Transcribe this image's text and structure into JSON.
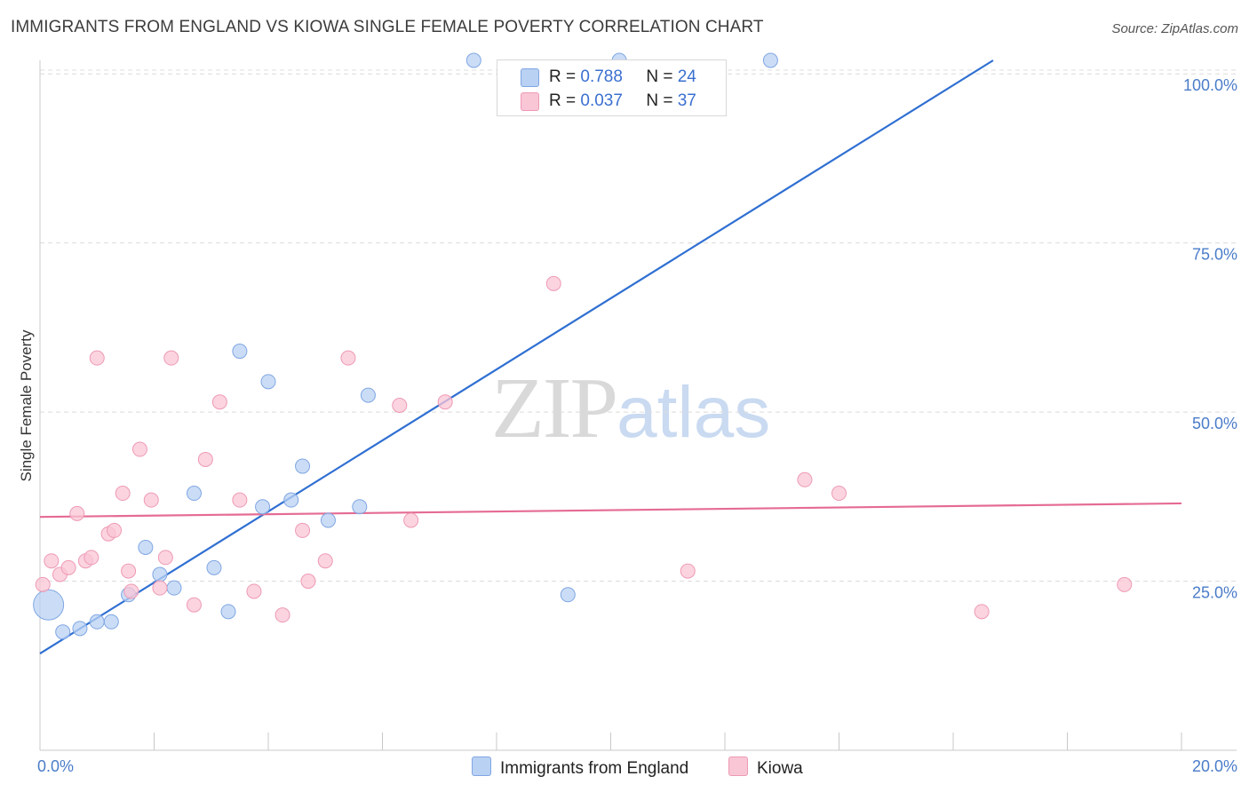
{
  "header": {
    "title": "IMMIGRANTS FROM ENGLAND VS KIOWA SINGLE FEMALE POVERTY CORRELATION CHART",
    "source": "Source: ZipAtlas.com"
  },
  "watermark": {
    "zip": "ZIP",
    "atlas": "atlas"
  },
  "legend": {
    "rows": [
      {
        "r_label": "R =",
        "r_value": "0.788",
        "n_label": "N =",
        "n_value": "24",
        "color": "#b9d1f3",
        "border": "#7fa6e3"
      },
      {
        "r_label": "R =",
        "r_value": "0.037",
        "n_label": "N =",
        "n_value": "37",
        "color": "#f9c6d6",
        "border": "#ee9ab4"
      }
    ]
  },
  "bottom_legend": [
    {
      "label": "Immigrants from England",
      "color": "#b9d1f3",
      "border": "#7fa6e3"
    },
    {
      "label": "Kiowa",
      "color": "#f9c6d6",
      "border": "#ee9ab4"
    }
  ],
  "chart_data": {
    "type": "scatter",
    "title": "IMMIGRANTS FROM ENGLAND VS KIOWA SINGLE FEMALE POVERTY CORRELATION CHART",
    "xlabel": "",
    "ylabel": "Single Female Poverty",
    "xlim": [
      0,
      20
    ],
    "ylim": [
      0,
      102
    ],
    "x_tick_labels": [
      {
        "value": 0,
        "label": "0.0%"
      },
      {
        "value": 20,
        "label": "20.0%"
      }
    ],
    "y_tick_labels": [
      {
        "value": 25,
        "label": "25.0%"
      },
      {
        "value": 50,
        "label": "50.0%"
      },
      {
        "value": 75,
        "label": "75.0%"
      },
      {
        "value": 100,
        "label": "100.0%"
      }
    ],
    "series": [
      {
        "name": "Immigrants from England",
        "color": "#b9d1f3",
        "stroke": "#7fa6e3",
        "line_color": "#2f6fd2",
        "trend": {
          "x": [
            0,
            16.7
          ],
          "y": [
            14.3,
            102
          ]
        },
        "points": [
          {
            "x": 0.15,
            "y": 21.5,
            "size": "large"
          },
          {
            "x": 0.4,
            "y": 17.5
          },
          {
            "x": 0.7,
            "y": 18.0
          },
          {
            "x": 1.0,
            "y": 19.0
          },
          {
            "x": 1.25,
            "y": 19.0
          },
          {
            "x": 1.55,
            "y": 23.0
          },
          {
            "x": 1.85,
            "y": 30.0
          },
          {
            "x": 2.1,
            "y": 26.0
          },
          {
            "x": 2.35,
            "y": 24.0
          },
          {
            "x": 2.7,
            "y": 38.0
          },
          {
            "x": 3.05,
            "y": 27.0
          },
          {
            "x": 3.3,
            "y": 20.5
          },
          {
            "x": 3.5,
            "y": 59.0
          },
          {
            "x": 3.9,
            "y": 36.0
          },
          {
            "x": 4.0,
            "y": 54.5
          },
          {
            "x": 4.4,
            "y": 37.0
          },
          {
            "x": 4.6,
            "y": 42.0
          },
          {
            "x": 5.05,
            "y": 34.0
          },
          {
            "x": 5.6,
            "y": 36.0
          },
          {
            "x": 5.75,
            "y": 52.5
          },
          {
            "x": 7.6,
            "y": 102.0
          },
          {
            "x": 9.25,
            "y": 23.0
          },
          {
            "x": 10.15,
            "y": 102.0
          },
          {
            "x": 12.8,
            "y": 102.0
          }
        ]
      },
      {
        "name": "Kiowa",
        "color": "#f9c6d6",
        "stroke": "#ee9ab4",
        "line_color": "#e56b93",
        "trend": {
          "x": [
            0,
            20
          ],
          "y": [
            34.5,
            36.5
          ]
        },
        "points": [
          {
            "x": 0.05,
            "y": 24.5
          },
          {
            "x": 0.2,
            "y": 28.0
          },
          {
            "x": 0.35,
            "y": 26.0
          },
          {
            "x": 0.5,
            "y": 27.0
          },
          {
            "x": 0.65,
            "y": 35.0
          },
          {
            "x": 0.8,
            "y": 28.0
          },
          {
            "x": 0.9,
            "y": 28.5
          },
          {
            "x": 1.0,
            "y": 58.0
          },
          {
            "x": 1.2,
            "y": 32.0
          },
          {
            "x": 1.3,
            "y": 32.5
          },
          {
            "x": 1.45,
            "y": 38.0
          },
          {
            "x": 1.55,
            "y": 26.5
          },
          {
            "x": 1.6,
            "y": 23.5
          },
          {
            "x": 1.75,
            "y": 44.5
          },
          {
            "x": 1.95,
            "y": 37.0
          },
          {
            "x": 2.1,
            "y": 24.0
          },
          {
            "x": 2.2,
            "y": 28.5
          },
          {
            "x": 2.3,
            "y": 58.0
          },
          {
            "x": 2.7,
            "y": 21.5
          },
          {
            "x": 2.9,
            "y": 43.0
          },
          {
            "x": 3.15,
            "y": 51.5
          },
          {
            "x": 3.5,
            "y": 37.0
          },
          {
            "x": 3.75,
            "y": 23.5
          },
          {
            "x": 4.25,
            "y": 20.0
          },
          {
            "x": 4.6,
            "y": 32.5
          },
          {
            "x": 4.7,
            "y": 25.0
          },
          {
            "x": 5.0,
            "y": 28.0
          },
          {
            "x": 5.4,
            "y": 58.0
          },
          {
            "x": 6.3,
            "y": 51.0
          },
          {
            "x": 6.5,
            "y": 34.0
          },
          {
            "x": 7.1,
            "y": 51.5
          },
          {
            "x": 9.0,
            "y": 69.0
          },
          {
            "x": 11.35,
            "y": 26.5
          },
          {
            "x": 13.4,
            "y": 40.0
          },
          {
            "x": 14.0,
            "y": 38.0
          },
          {
            "x": 16.5,
            "y": 20.5
          },
          {
            "x": 19.0,
            "y": 24.5
          }
        ]
      }
    ]
  }
}
